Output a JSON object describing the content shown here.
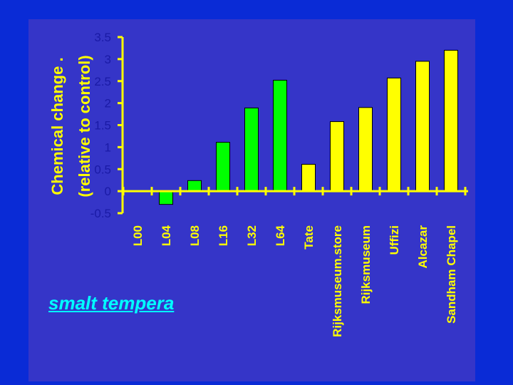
{
  "caption": "smalt tempera",
  "chart_data": {
    "type": "bar",
    "ylabel_lines": [
      "Chemical change .",
      "(relative to control)"
    ],
    "yticks": [
      "-0.5",
      "0",
      "0.5",
      "1",
      "1.5",
      "2",
      "2.5",
      "3",
      "3.5"
    ],
    "ylim": [
      -0.5,
      3.5
    ],
    "categories": [
      "L00",
      "L04",
      "L08",
      "L16",
      "L32",
      "L64",
      "Tate",
      "Rijksmuseum.store",
      "Rijksmuseum",
      "Uffizi",
      "Alcazar",
      "Sandham Chapel"
    ],
    "values": [
      0,
      -0.3,
      0.24,
      1.11,
      1.89,
      2.52,
      0.61,
      1.58,
      1.9,
      2.57,
      2.95,
      3.2
    ],
    "bar_colors": [
      "#00ff00",
      "#00ff00",
      "#00ff00",
      "#00ff00",
      "#00ff00",
      "#00ff00",
      "#ffff00",
      "#ffff00",
      "#ffff00",
      "#ffff00",
      "#ffff00",
      "#ffff00"
    ],
    "grid": false
  },
  "colors": {
    "background": "#0a2bd6",
    "panel": "#3535c8",
    "axis": "#ffff00",
    "tick_text": "#1a1aa6",
    "label_text": "#ffff00",
    "caption": "#00ffff"
  }
}
